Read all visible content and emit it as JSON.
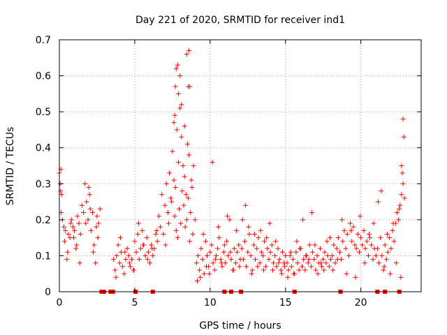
{
  "chart_data": {
    "type": "scatter",
    "title": "Day 221 of 2020, SRMTID for receiver ind1",
    "xlabel": "GPS time / hours",
    "ylabel": "SRMTID / TECUs",
    "xlim": [
      0,
      24
    ],
    "ylim": [
      0,
      0.7
    ],
    "x_ticks": [
      0,
      5,
      10,
      15,
      20
    ],
    "x_tick_labels": [
      "0",
      "5",
      "10",
      "15",
      "20"
    ],
    "y_ticks": [
      0,
      0.1,
      0.2,
      0.3,
      0.4,
      0.5,
      0.6,
      0.7
    ],
    "y_tick_labels": [
      "0",
      "0.1",
      "0.2",
      "0.3",
      "0.4",
      "0.5",
      "0.6",
      "0.7"
    ],
    "grid": true,
    "marker": "plus",
    "color": "#ff0000",
    "series": [
      {
        "name": "SRMTID",
        "x": [
          0.0,
          0.05,
          0.1,
          0.15,
          0.2,
          0.3,
          0.4,
          0.5,
          0.6,
          0.7,
          0.8,
          0.9,
          1.0,
          1.1,
          1.2,
          1.3,
          1.4,
          1.5,
          1.6,
          1.7,
          1.8,
          1.9,
          2.0,
          2.1,
          2.2,
          2.3,
          2.4,
          2.5,
          2.6,
          2.7,
          0.08,
          0.12,
          0.35,
          0.55,
          0.75,
          0.95,
          1.15,
          1.35,
          1.75,
          1.95,
          2.05,
          2.25,
          2.45,
          2.55,
          3.6,
          3.7,
          3.8,
          3.9,
          4.0,
          4.1,
          4.2,
          4.3,
          4.4,
          4.5,
          4.6,
          4.7,
          4.8,
          4.9,
          5.0,
          5.1,
          5.2,
          5.3,
          5.4,
          5.5,
          5.6,
          5.7,
          5.8,
          5.9,
          6.0,
          6.1,
          6.2,
          6.3,
          6.4,
          6.5,
          3.75,
          4.05,
          4.35,
          4.65,
          4.95,
          5.25,
          5.55,
          5.85,
          6.15,
          6.45,
          6.6,
          6.7,
          6.8,
          6.9,
          7.0,
          7.1,
          7.2,
          7.3,
          7.4,
          7.5,
          7.6,
          7.7,
          7.8,
          7.9,
          8.0,
          8.1,
          8.2,
          8.3,
          8.4,
          8.5,
          8.6,
          8.7,
          8.8,
          8.9,
          9.0,
          7.05,
          7.25,
          7.45,
          7.65,
          7.75,
          7.85,
          7.95,
          8.05,
          8.15,
          8.25,
          8.35,
          8.45,
          8.55,
          8.65,
          8.75,
          8.85,
          7.7,
          7.75,
          7.85,
          7.9,
          8.0,
          8.45,
          8.55,
          8.6,
          8.65,
          7.6,
          7.65,
          8.1,
          8.3,
          9.1,
          9.2,
          9.3,
          9.4,
          9.5,
          9.6,
          9.7,
          9.8,
          9.9,
          10.0,
          10.1,
          10.2,
          10.3,
          10.4,
          10.5,
          10.6,
          10.7,
          10.8,
          10.9,
          11.0,
          11.1,
          11.2,
          11.3,
          11.4,
          11.5,
          11.6,
          11.7,
          11.8,
          11.9,
          12.0,
          9.15,
          9.35,
          9.55,
          9.75,
          9.95,
          10.15,
          10.35,
          10.55,
          10.75,
          10.95,
          11.15,
          11.35,
          11.55,
          11.75,
          11.95,
          12.1,
          12.2,
          12.3,
          12.4,
          12.5,
          12.6,
          12.7,
          12.8,
          12.9,
          13.0,
          13.1,
          13.2,
          13.3,
          13.4,
          13.5,
          13.6,
          13.7,
          13.8,
          13.9,
          14.0,
          14.1,
          14.2,
          14.3,
          14.4,
          14.5,
          14.6,
          14.7,
          14.8,
          14.9,
          15.0,
          12.15,
          12.35,
          12.55,
          12.75,
          12.95,
          13.15,
          13.35,
          13.55,
          13.75,
          13.95,
          14.15,
          14.35,
          14.55,
          14.75,
          14.95,
          15.1,
          15.2,
          15.3,
          15.4,
          15.5,
          15.6,
          15.7,
          15.8,
          15.9,
          16.0,
          16.1,
          16.2,
          16.3,
          16.4,
          16.5,
          16.6,
          16.7,
          16.8,
          16.9,
          17.0,
          17.1,
          17.2,
          17.3,
          17.4,
          17.5,
          17.6,
          17.7,
          17.8,
          17.9,
          18.0,
          15.15,
          15.35,
          15.55,
          15.75,
          15.95,
          16.15,
          16.35,
          16.55,
          16.75,
          16.95,
          17.15,
          17.35,
          17.55,
          17.75,
          17.95,
          18.1,
          18.2,
          18.3,
          18.4,
          18.5,
          18.6,
          18.7,
          18.8,
          18.9,
          19.0,
          19.1,
          19.2,
          19.3,
          19.4,
          19.5,
          19.6,
          19.7,
          19.8,
          19.9,
          20.0,
          20.1,
          20.2,
          20.3,
          20.4,
          20.5,
          20.6,
          20.7,
          20.8,
          20.9,
          21.0,
          18.15,
          18.45,
          18.75,
          19.05,
          19.35,
          19.65,
          19.95,
          20.25,
          20.55,
          20.85,
          21.1,
          21.2,
          21.3,
          21.4,
          21.5,
          21.6,
          21.7,
          21.8,
          21.9,
          22.0,
          22.1,
          22.2,
          22.3,
          22.4,
          22.5,
          22.6,
          22.7,
          22.8,
          22.9,
          21.15,
          21.35,
          21.55,
          21.75,
          21.95,
          22.15,
          22.35,
          22.55,
          22.75,
          22.85,
          22.65,
          22.8,
          22.7
        ],
        "y": [
          0.33,
          0.3,
          0.34,
          0.27,
          0.2,
          0.18,
          0.17,
          0.09,
          0.16,
          0.15,
          0.2,
          0.18,
          0.17,
          0.12,
          0.21,
          0.19,
          0.16,
          0.24,
          0.22,
          0.3,
          0.25,
          0.2,
          0.27,
          0.17,
          0.22,
          0.13,
          0.08,
          0.21,
          0.19,
          0.23,
          0.28,
          0.22,
          0.14,
          0.11,
          0.19,
          0.15,
          0.13,
          0.08,
          0.19,
          0.29,
          0.23,
          0.11,
          0.18,
          0.15,
          0.09,
          0.06,
          0.1,
          0.13,
          0.08,
          0.11,
          0.07,
          0.05,
          0.09,
          0.12,
          0.1,
          0.07,
          0.09,
          0.06,
          0.14,
          0.11,
          0.16,
          0.09,
          0.12,
          0.17,
          0.13,
          0.1,
          0.15,
          0.11,
          0.08,
          0.13,
          0.1,
          0.12,
          0.16,
          0.14,
          0.04,
          0.15,
          0.11,
          0.08,
          0.06,
          0.19,
          0.13,
          0.09,
          0.12,
          0.17,
          0.21,
          0.18,
          0.27,
          0.16,
          0.24,
          0.3,
          0.22,
          0.33,
          0.26,
          0.39,
          0.31,
          0.29,
          0.45,
          0.36,
          0.51,
          0.43,
          0.35,
          0.32,
          0.27,
          0.41,
          0.38,
          0.22,
          0.29,
          0.35,
          0.2,
          0.13,
          0.19,
          0.25,
          0.21,
          0.17,
          0.15,
          0.23,
          0.19,
          0.28,
          0.24,
          0.18,
          0.2,
          0.26,
          0.14,
          0.31,
          0.16,
          0.57,
          0.62,
          0.63,
          0.55,
          0.6,
          0.66,
          0.57,
          0.67,
          0.57,
          0.47,
          0.49,
          0.52,
          0.46,
          0.08,
          0.1,
          0.06,
          0.12,
          0.09,
          0.05,
          0.14,
          0.1,
          0.07,
          0.11,
          0.13,
          0.08,
          0.06,
          0.1,
          0.12,
          0.15,
          0.09,
          0.07,
          0.11,
          0.08,
          0.14,
          0.1,
          0.2,
          0.09,
          0.06,
          0.12,
          0.08,
          0.11,
          0.13,
          0.09,
          0.03,
          0.04,
          0.16,
          0.07,
          0.05,
          0.36,
          0.09,
          0.18,
          0.08,
          0.13,
          0.21,
          0.11,
          0.06,
          0.17,
          0.07,
          0.12,
          0.09,
          0.14,
          0.07,
          0.11,
          0.16,
          0.1,
          0.06,
          0.13,
          0.09,
          0.12,
          0.15,
          0.08,
          0.11,
          0.1,
          0.14,
          0.07,
          0.12,
          0.09,
          0.11,
          0.13,
          0.08,
          0.1,
          0.07,
          0.12,
          0.09,
          0.06,
          0.11,
          0.08,
          0.1,
          0.2,
          0.24,
          0.18,
          0.05,
          0.16,
          0.07,
          0.17,
          0.06,
          0.15,
          0.19,
          0.06,
          0.14,
          0.08,
          0.05,
          0.07,
          0.08,
          0.06,
          0.1,
          0.07,
          0.09,
          0.05,
          0.11,
          0.08,
          0.06,
          0.12,
          0.07,
          0.09,
          0.06,
          0.1,
          0.08,
          0.13,
          0.07,
          0.11,
          0.09,
          0.06,
          0.1,
          0.08,
          0.12,
          0.07,
          0.09,
          0.11,
          0.08,
          0.1,
          0.07,
          0.09,
          0.04,
          0.11,
          0.05,
          0.14,
          0.12,
          0.2,
          0.1,
          0.09,
          0.22,
          0.13,
          0.05,
          0.08,
          0.06,
          0.14,
          0.15,
          0.1,
          0.13,
          0.08,
          0.12,
          0.15,
          0.11,
          0.09,
          0.14,
          0.17,
          0.12,
          0.16,
          0.1,
          0.19,
          0.14,
          0.18,
          0.13,
          0.12,
          0.16,
          0.11,
          0.15,
          0.13,
          0.17,
          0.12,
          0.14,
          0.1,
          0.15,
          0.13,
          0.09,
          0.12,
          0.1,
          0.06,
          0.09,
          0.2,
          0.05,
          0.17,
          0.04,
          0.21,
          0.08,
          0.16,
          0.19,
          0.12,
          0.08,
          0.15,
          0.1,
          0.06,
          0.13,
          0.09,
          0.11,
          0.15,
          0.12,
          0.17,
          0.14,
          0.19,
          0.22,
          0.2,
          0.24,
          0.27,
          0.3,
          0.26,
          0.25,
          0.28,
          0.07,
          0.16,
          0.05,
          0.19,
          0.08,
          0.23,
          0.33,
          0.43,
          0.04,
          0.48,
          0.35
        ]
      }
    ],
    "bottom_markers": {
      "x": [
        2.8,
        2.95,
        3.4,
        3.55,
        5.05,
        6.2,
        10.95,
        11.4,
        12.05,
        15.6,
        18.65,
        21.1,
        21.6,
        22.55
      ],
      "y": [
        0,
        0,
        0,
        0,
        0,
        0,
        0,
        0,
        0,
        0,
        0,
        0,
        0,
        0
      ]
    }
  }
}
